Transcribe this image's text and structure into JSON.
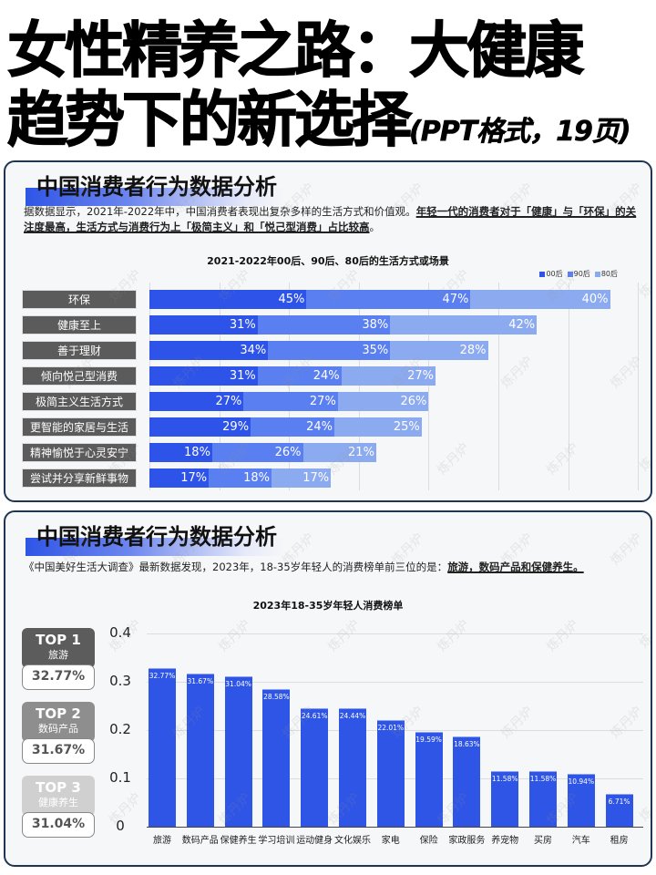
{
  "hero": {
    "line1": "女性精养之路：大健康",
    "line2": "趋势下的新选择",
    "suffix": "(PPT格式，19页)"
  },
  "card1": {
    "title": "中国消费者行为数据分析",
    "desc_plain": "据数据显示，2021年-2022年中，中国消费者表现出复杂多样的生活方式和价值观。",
    "desc_underlined": "年轻一代的消费者对于「健康」与「环保」的关注度最高，生活方式与消费行为上「极简主义」和「悦己型消费」占比较高",
    "desc_end": "。"
  },
  "card2": {
    "title": "中国消费者行为数据分析",
    "desc_plain": "《中国美好生活大调查》最新数据发现，2023年，18-35岁年轻人的消费榜单前三位的是：",
    "desc_underlined": "旅游，数码产品和保健养生。",
    "top": [
      {
        "rank": "TOP 1",
        "name": "旅游",
        "value": "32.77%",
        "color": "#5c5c5c"
      },
      {
        "rank": "TOP 2",
        "name": "数码产品",
        "value": "31.67%",
        "color": "#8e8e8e"
      },
      {
        "rank": "TOP 3",
        "name": "健康养生",
        "value": "31.04%",
        "color": "#d0d0d0"
      }
    ]
  },
  "watermark": "炼丹炉",
  "colors": {
    "s00": "#2d53e8",
    "s90": "#5a7ff0",
    "s80": "#8caaf0",
    "bar": "#2f55e6",
    "card_border": "#1f3550"
  },
  "chart_data": [
    {
      "type": "bar",
      "orientation": "horizontal",
      "stacked": true,
      "title": "2021-2022年00后、90后、80后的生活方式或场景",
      "legend": [
        "00后",
        "90后",
        "80后"
      ],
      "legend_position": "top-right",
      "categories": [
        "环保",
        "健康至上",
        "善于理财",
        "倾向悦己型消费",
        "极简主义生活方式",
        "更智能的家居与生活",
        "精神愉悦于心灵安宁",
        "尝试并分享新鲜事物"
      ],
      "series": [
        {
          "name": "00后",
          "values": [
            45,
            31,
            34,
            31,
            27,
            29,
            18,
            17
          ],
          "labels": [
            "45%",
            "31%",
            "34%",
            "31%",
            "27%",
            "29%",
            "18%",
            "17%"
          ]
        },
        {
          "name": "90后",
          "values": [
            47,
            38,
            35,
            24,
            27,
            24,
            26,
            18
          ],
          "labels": [
            "47%",
            "38%",
            "35%",
            "24%",
            "27%",
            "24%",
            "26%",
            "18%"
          ]
        },
        {
          "name": "80后",
          "values": [
            40,
            42,
            28,
            27,
            26,
            25,
            21,
            17
          ],
          "labels": [
            "40%",
            "42%",
            "28%",
            "27%",
            "26%",
            "25%",
            "21%",
            "17%"
          ]
        }
      ],
      "grid": true,
      "xlabel": "",
      "ylabel": ""
    },
    {
      "type": "bar",
      "title": "2023年18-35岁年轻人消费榜单",
      "categories": [
        "旅游",
        "数码产品",
        "保健养生",
        "学习培训",
        "运动健身",
        "文化娱乐",
        "家电",
        "保险",
        "家政服务",
        "养宠物",
        "买房",
        "汽车",
        "租房"
      ],
      "values": [
        0.3277,
        0.3167,
        0.3104,
        0.2858,
        0.2461,
        0.2444,
        0.2201,
        0.1959,
        0.1863,
        0.1158,
        0.1158,
        0.1094,
        0.0671
      ],
      "labels": [
        "32.77%",
        "31.67%",
        "31.04%",
        "28.58%",
        "24.61%",
        "24.44%",
        "22.01%",
        "19.59%",
        "18.63%",
        "11.58%",
        "11.58%",
        "10.94%",
        "6.71%"
      ],
      "yticks": [
        "0",
        "0.1",
        "0.2",
        "0.3",
        "0.4"
      ],
      "ylim": [
        0,
        0.4
      ],
      "grid": true,
      "xlabel": "",
      "ylabel": ""
    }
  ]
}
